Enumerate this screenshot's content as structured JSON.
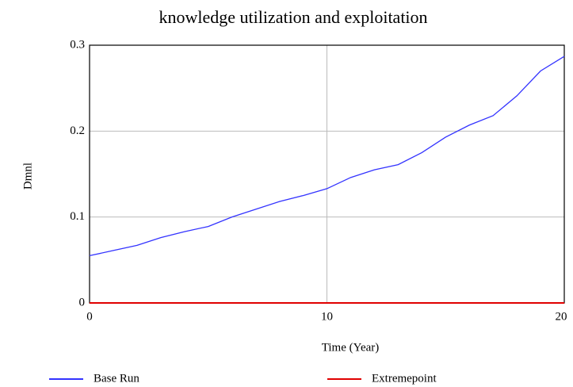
{
  "chart_data": {
    "type": "line",
    "title": "knowledge utilization and exploitation",
    "x_label": "Time (Year)",
    "y_label": "Dmnl",
    "x": [
      0,
      1,
      2,
      3,
      4,
      5,
      6,
      7,
      8,
      9,
      10,
      11,
      12,
      13,
      14,
      15,
      16,
      17,
      18,
      19,
      20
    ],
    "series": [
      {
        "name": "Base Run",
        "color": "#3333ff",
        "values": [
          0.055,
          0.061,
          0.067,
          0.076,
          0.083,
          0.089,
          0.1,
          0.109,
          0.118,
          0.125,
          0.133,
          0.146,
          0.155,
          0.161,
          0.175,
          0.193,
          0.207,
          0.218,
          0.241,
          0.27,
          0.287
        ]
      },
      {
        "name": "Extremepoint",
        "color": "#e00000",
        "values": [
          0,
          0,
          0,
          0,
          0,
          0,
          0,
          0,
          0,
          0,
          0,
          0,
          0,
          0,
          0,
          0,
          0,
          0,
          0,
          0,
          0
        ]
      }
    ],
    "xlim": [
      0,
      20
    ],
    "ylim": [
      0,
      0.3
    ],
    "xticks": [
      0,
      10,
      20
    ],
    "yticks": [
      0,
      0.1,
      0.2,
      0.3
    ],
    "grid": true
  }
}
